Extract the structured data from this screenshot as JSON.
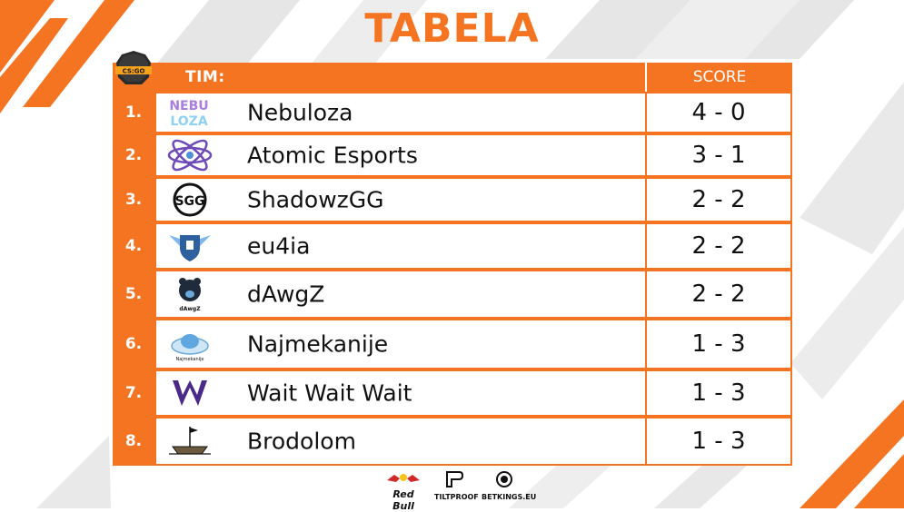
{
  "title": "TABELA",
  "badge": {
    "text": "CS:GO"
  },
  "header": {
    "team_label": "TIM:",
    "score_label": "SCORE"
  },
  "rows": [
    {
      "rank": "1.",
      "name": "Nebuloza",
      "score": "4 - 0",
      "logo_text": [
        "NEBU",
        "LOZA"
      ]
    },
    {
      "rank": "2.",
      "name": "Atomic Esports",
      "score": "3 - 1"
    },
    {
      "rank": "3.",
      "name": "ShadowzGG",
      "score": "2 - 2",
      "logo_text": "SGG"
    },
    {
      "rank": "4.",
      "name": "eu4ia",
      "score": "2 - 2"
    },
    {
      "rank": "5.",
      "name": "dAwgZ",
      "score": "2 - 2",
      "logo_text": "dAwgZ"
    },
    {
      "rank": "6.",
      "name": "Najmekanije",
      "score": "1 - 3",
      "logo_text": "Najmekanije"
    },
    {
      "rank": "7.",
      "name": "Wait Wait Wait",
      "score": "1 - 3"
    },
    {
      "rank": "8.",
      "name": "Brodolom",
      "score": "1 - 3"
    }
  ],
  "sponsors": [
    {
      "name": "Red Bull",
      "icon": "red-bull-icon"
    },
    {
      "name": "TILTPROOF",
      "icon": "tiltproof-icon"
    },
    {
      "name": "BETKINGS.EU",
      "icon": "lion-icon"
    }
  ],
  "colors": {
    "accent": "#f47421",
    "stripe_gray": "#e6e6e6",
    "text": "#111111"
  }
}
